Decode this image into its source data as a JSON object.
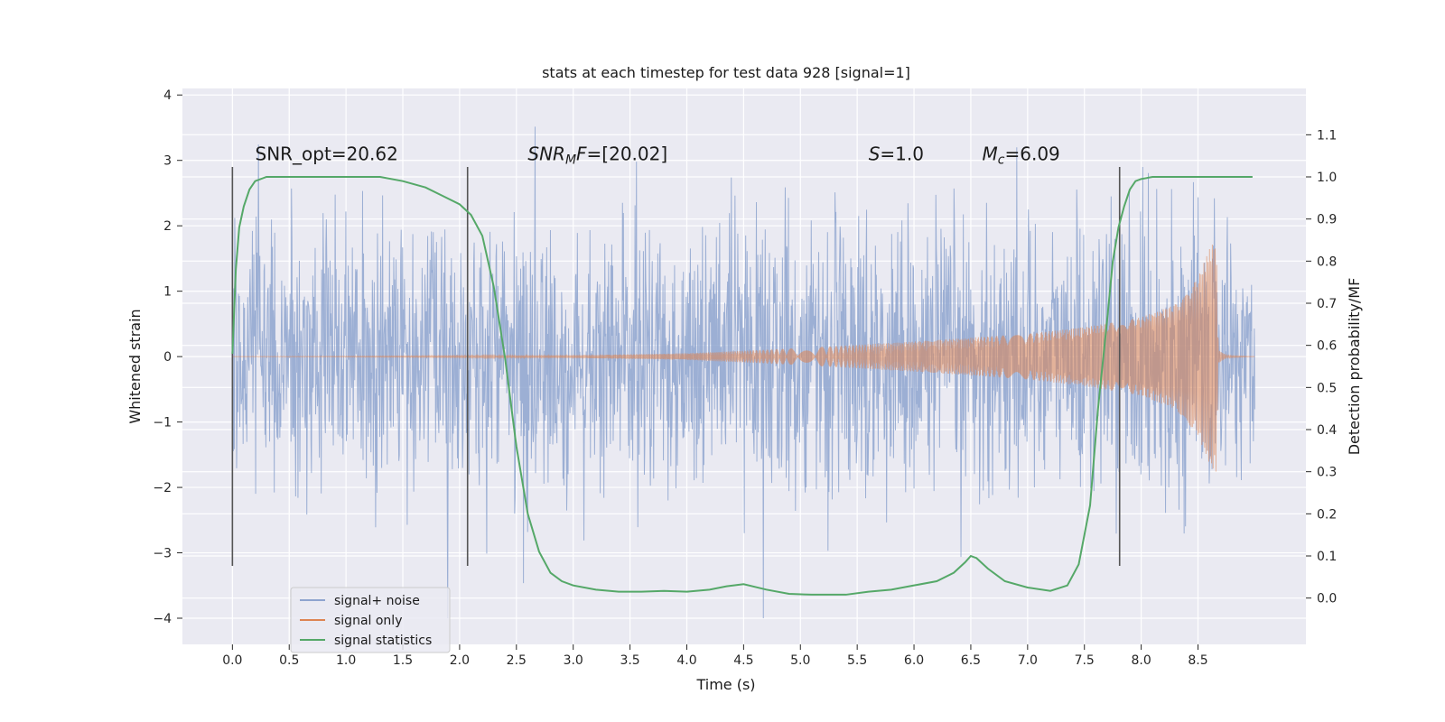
{
  "chart_data": {
    "type": "line",
    "title": "stats at each timestep for test data 928 [signal=1]",
    "xlabel": "Time (s)",
    "ylabel": "Whitened strain",
    "y2label": "Detection probability/MF",
    "xlim": [
      -0.44,
      9.45
    ],
    "ylim": [
      -4.4,
      4.1
    ],
    "y2lim": [
      -0.11,
      1.21
    ],
    "xticks": [
      0.0,
      0.5,
      1.0,
      1.5,
      2.0,
      2.5,
      3.0,
      3.5,
      4.0,
      4.5,
      5.0,
      5.5,
      6.0,
      6.5,
      7.0,
      7.5,
      8.0,
      8.5
    ],
    "xtick_labels": [
      "0.0",
      "0.5",
      "1.0",
      "1.5",
      "2.0",
      "2.5",
      "3.0",
      "3.5",
      "4.0",
      "4.5",
      "5.0",
      "5.5",
      "6.0",
      "6.5",
      "7.0",
      "7.5",
      "8.0",
      "8.5"
    ],
    "yticks": [
      -4,
      -3,
      -2,
      -1,
      0,
      1,
      2,
      3,
      4
    ],
    "ytick_labels": [
      "−4",
      "−3",
      "−2",
      "−1",
      "0",
      "1",
      "2",
      "3",
      "4"
    ],
    "y2ticks": [
      0.0,
      0.1,
      0.2,
      0.3,
      0.4,
      0.5,
      0.6,
      0.7,
      0.8,
      0.9,
      1.0,
      1.1
    ],
    "y2tick_labels": [
      "0.0",
      "0.1",
      "0.2",
      "0.3",
      "0.4",
      "0.5",
      "0.6",
      "0.7",
      "0.8",
      "0.9",
      "1.0",
      "1.1"
    ],
    "grid": true,
    "legend_position": "lower-left",
    "series": [
      {
        "name": "signal+ noise",
        "color": "#8ea4cf",
        "axis": "left",
        "kind": "noise",
        "t_start": 0.0,
        "t_end": 9.0,
        "typical_amplitude": 1.2,
        "max_value": 3.8,
        "min_value": -4.0
      },
      {
        "name": "signal only",
        "color": "#dd8452",
        "axis": "left",
        "kind": "chirp",
        "t_start": 0.0,
        "t_end": 9.0,
        "envelope": [
          [
            0.0,
            0.0
          ],
          [
            3.0,
            0.02
          ],
          [
            4.0,
            0.05
          ],
          [
            5.0,
            0.13
          ],
          [
            6.0,
            0.23
          ],
          [
            7.0,
            0.35
          ],
          [
            7.5,
            0.45
          ],
          [
            8.0,
            0.6
          ],
          [
            8.3,
            0.8
          ],
          [
            8.5,
            1.2
          ],
          [
            8.6,
            1.65
          ],
          [
            8.66,
            1.8
          ],
          [
            8.68,
            0.1
          ],
          [
            8.75,
            0.02
          ],
          [
            9.0,
            0.0
          ]
        ]
      },
      {
        "name": "signal statistics",
        "color": "#55a868",
        "axis": "right",
        "kind": "line",
        "x": [
          0.0,
          0.03,
          0.06,
          0.1,
          0.15,
          0.2,
          0.3,
          0.5,
          1.0,
          1.3,
          1.5,
          1.7,
          1.85,
          2.0,
          2.1,
          2.2,
          2.3,
          2.4,
          2.5,
          2.6,
          2.7,
          2.8,
          2.9,
          3.0,
          3.2,
          3.4,
          3.6,
          3.8,
          4.0,
          4.2,
          4.35,
          4.5,
          4.7,
          4.9,
          5.1,
          5.4,
          5.6,
          5.8,
          6.0,
          6.2,
          6.35,
          6.45,
          6.5,
          6.55,
          6.65,
          6.8,
          7.0,
          7.2,
          7.35,
          7.45,
          7.55,
          7.62,
          7.7,
          7.75,
          7.8,
          7.85,
          7.9,
          7.95,
          8.0,
          8.1,
          8.3,
          8.5,
          8.8,
          8.98
        ],
        "y": [
          0.58,
          0.78,
          0.88,
          0.93,
          0.97,
          0.99,
          1.0,
          1.0,
          1.0,
          1.0,
          0.99,
          0.975,
          0.955,
          0.935,
          0.91,
          0.86,
          0.74,
          0.57,
          0.36,
          0.2,
          0.11,
          0.06,
          0.04,
          0.03,
          0.02,
          0.015,
          0.015,
          0.017,
          0.015,
          0.02,
          0.028,
          0.033,
          0.02,
          0.01,
          0.008,
          0.008,
          0.015,
          0.02,
          0.03,
          0.04,
          0.06,
          0.085,
          0.1,
          0.095,
          0.07,
          0.04,
          0.025,
          0.017,
          0.03,
          0.08,
          0.22,
          0.45,
          0.66,
          0.8,
          0.88,
          0.93,
          0.97,
          0.99,
          0.995,
          1.0,
          1.0,
          1.0,
          1.0,
          1.0
        ]
      }
    ],
    "vertical_markers": [
      0.0,
      2.07,
      7.81
    ],
    "vertical_marker_color": "#555555",
    "vertical_marker_range": [
      -3.2,
      2.9
    ],
    "annotations": [
      {
        "x": 0.2,
        "y": 3.0,
        "parts": [
          {
            "text": "SNR_opt=20.62",
            "style": "normal"
          }
        ]
      },
      {
        "x": 2.6,
        "y": 3.0,
        "parts": [
          {
            "text": "SNR",
            "style": "italic"
          },
          {
            "text": "M",
            "style": "italic-sub"
          },
          {
            "text": "F",
            "style": "italic"
          },
          {
            "text": "=[20.02]",
            "style": "normal"
          }
        ]
      },
      {
        "x": 5.6,
        "y": 3.0,
        "parts": [
          {
            "text": "S",
            "style": "italic"
          },
          {
            "text": "=1.0",
            "style": "normal"
          }
        ]
      },
      {
        "x": 6.6,
        "y": 3.0,
        "parts": [
          {
            "text": "M",
            "style": "italic"
          },
          {
            "text": "c",
            "style": "italic-sub"
          },
          {
            "text": "=6.09",
            "style": "normal"
          }
        ]
      }
    ],
    "background_color": "#eaeaf2",
    "grid_color": "#ffffff"
  }
}
